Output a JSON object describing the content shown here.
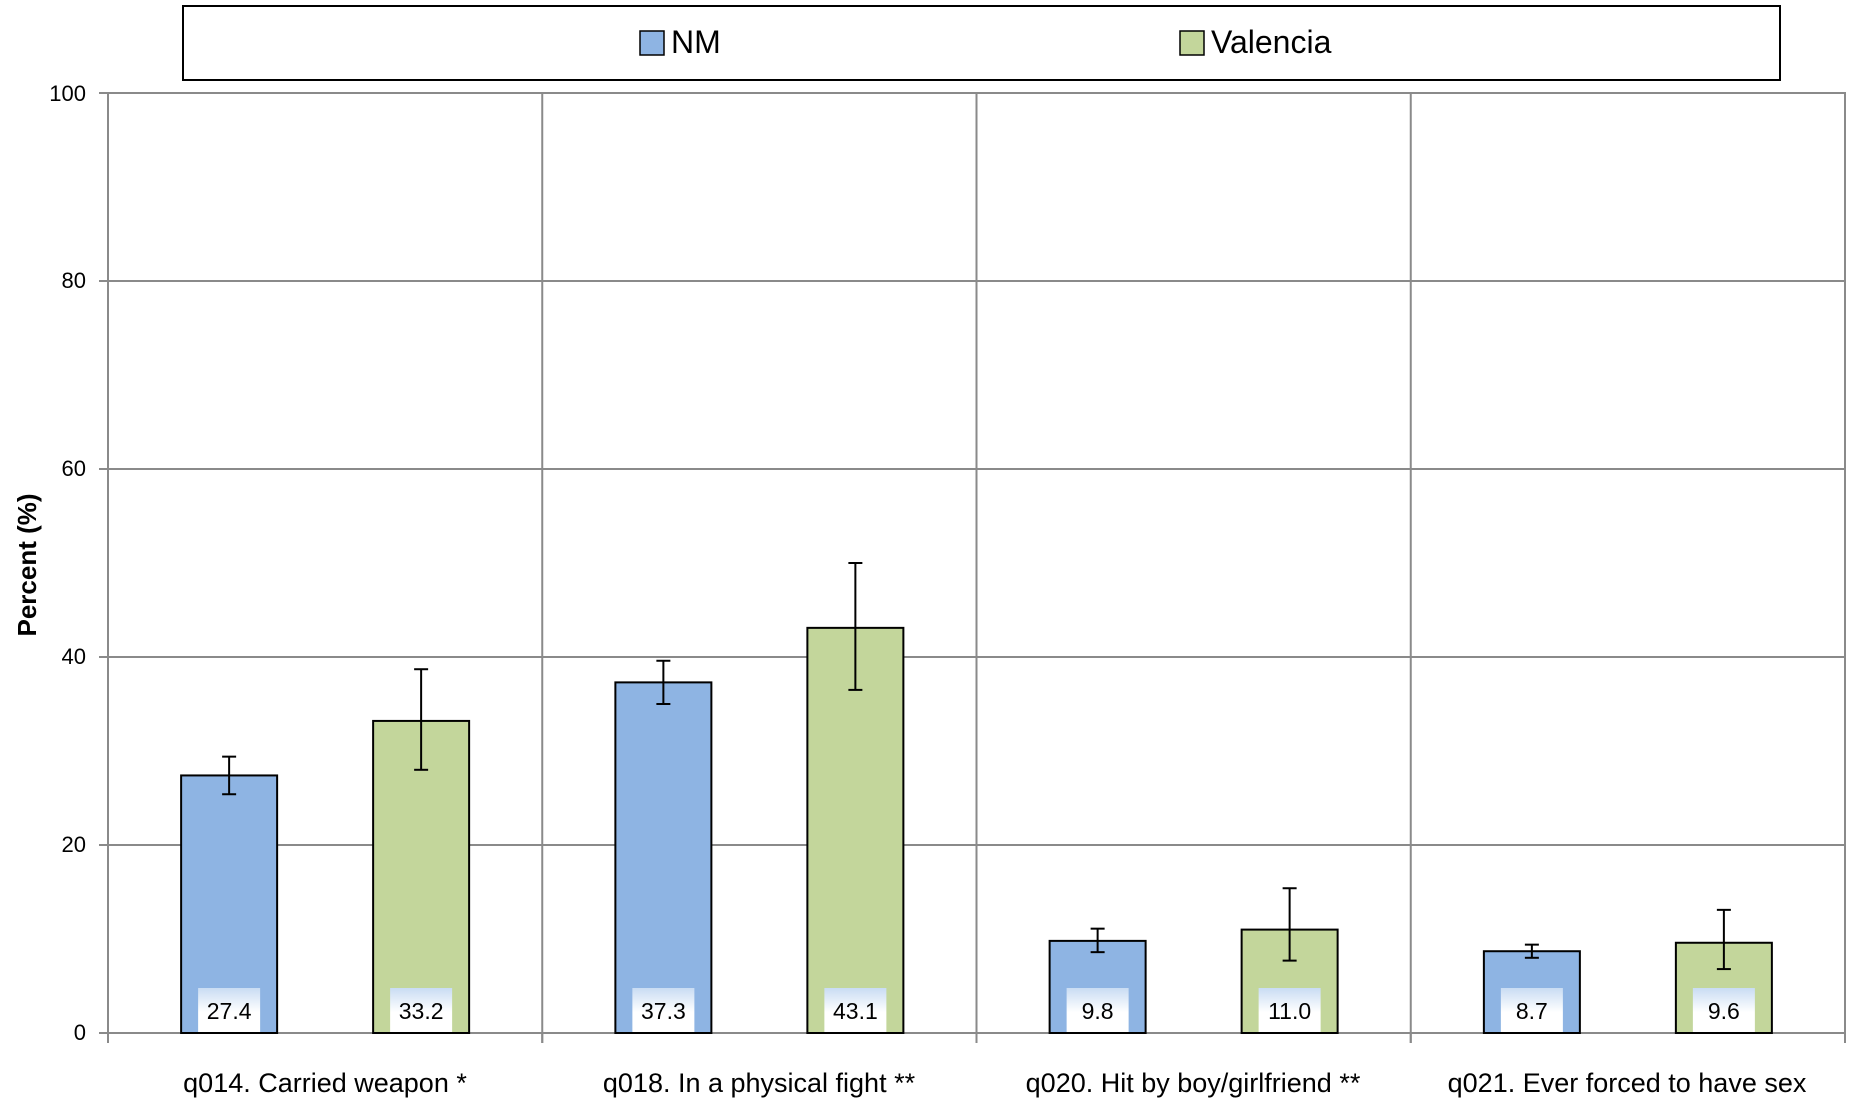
{
  "chart_data": {
    "type": "bar",
    "categories": [
      "q014. Carried weapon *",
      "q018. In a physical fight **",
      "q020. Hit by boy/girlfriend **",
      "q021. Ever forced to have sex"
    ],
    "series": [
      {
        "name": "NM",
        "color": "#8EB4E3",
        "values": [
          27.4,
          37.3,
          9.8,
          8.7
        ],
        "labels": [
          "27.4",
          "37.3",
          "9.8",
          "8.7"
        ],
        "err_low": [
          25.4,
          35.0,
          8.6,
          8.0
        ],
        "err_high": [
          29.4,
          39.6,
          11.1,
          9.4
        ]
      },
      {
        "name": "Valencia",
        "color": "#C3D69B",
        "values": [
          33.2,
          43.1,
          11.0,
          9.6
        ],
        "labels": [
          "33.2",
          "43.1",
          "11.0",
          "9.6"
        ],
        "err_low": [
          28.0,
          36.5,
          7.7,
          6.8
        ],
        "err_high": [
          38.7,
          50.0,
          15.4,
          13.1
        ]
      }
    ],
    "ylabel": "Percent (%)",
    "xlabel": "",
    "ylim": [
      0,
      100
    ],
    "yticks": [
      "0",
      "20",
      "40",
      "60",
      "80",
      "100"
    ],
    "grid": true,
    "legend_position": "top"
  }
}
